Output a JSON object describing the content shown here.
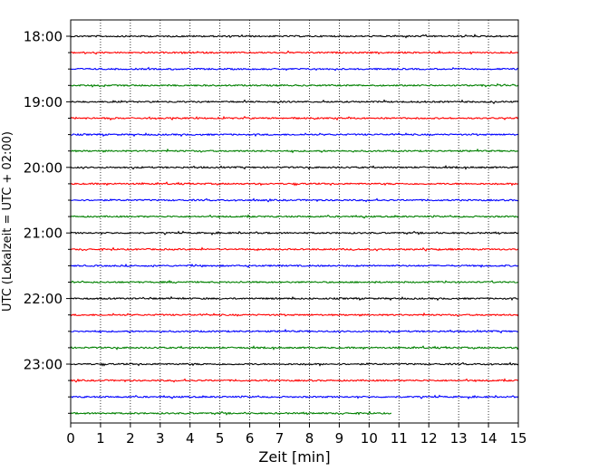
{
  "chart_data": {
    "type": "line",
    "title": "",
    "xlabel": "Zeit  [min]",
    "ylabel": "UTC (Lokalzeit = UTC + 02:00)",
    "xlim": [
      0,
      15
    ],
    "xticks": [
      "0",
      "1",
      "2",
      "3",
      "4",
      "5",
      "6",
      "7",
      "8",
      "9",
      "10",
      "11",
      "12",
      "13",
      "14",
      "15"
    ],
    "ytick_labels": [
      "18:00",
      "19:00",
      "20:00",
      "21:00",
      "22:00",
      "23:00"
    ],
    "grid": "vertical dotted",
    "colors": [
      "#000000",
      "#ff0000",
      "#0000ff",
      "#008000"
    ],
    "rows": [
      {
        "time": "18:00",
        "color": "#000000",
        "x_end": 15
      },
      {
        "time": "18:15",
        "color": "#ff0000",
        "x_end": 15
      },
      {
        "time": "18:30",
        "color": "#0000ff",
        "x_end": 15
      },
      {
        "time": "18:45",
        "color": "#008000",
        "x_end": 15
      },
      {
        "time": "19:00",
        "color": "#000000",
        "x_end": 15
      },
      {
        "time": "19:15",
        "color": "#ff0000",
        "x_end": 15
      },
      {
        "time": "19:30",
        "color": "#0000ff",
        "x_end": 15
      },
      {
        "time": "19:45",
        "color": "#008000",
        "x_end": 15
      },
      {
        "time": "20:00",
        "color": "#000000",
        "x_end": 15
      },
      {
        "time": "20:15",
        "color": "#ff0000",
        "x_end": 15
      },
      {
        "time": "20:30",
        "color": "#0000ff",
        "x_end": 15
      },
      {
        "time": "20:45",
        "color": "#008000",
        "x_end": 15
      },
      {
        "time": "21:00",
        "color": "#000000",
        "x_end": 15
      },
      {
        "time": "21:15",
        "color": "#ff0000",
        "x_end": 15
      },
      {
        "time": "21:30",
        "color": "#0000ff",
        "x_end": 15
      },
      {
        "time": "21:45",
        "color": "#008000",
        "x_end": 15
      },
      {
        "time": "22:00",
        "color": "#000000",
        "x_end": 15
      },
      {
        "time": "22:15",
        "color": "#ff0000",
        "x_end": 15
      },
      {
        "time": "22:30",
        "color": "#0000ff",
        "x_end": 15
      },
      {
        "time": "22:45",
        "color": "#008000",
        "x_end": 15
      },
      {
        "time": "23:00",
        "color": "#000000",
        "x_end": 15
      },
      {
        "time": "23:15",
        "color": "#ff0000",
        "x_end": 15
      },
      {
        "time": "23:30",
        "color": "#0000ff",
        "x_end": 15
      },
      {
        "time": "23:45",
        "color": "#008000",
        "x_end": 10.75
      }
    ]
  }
}
